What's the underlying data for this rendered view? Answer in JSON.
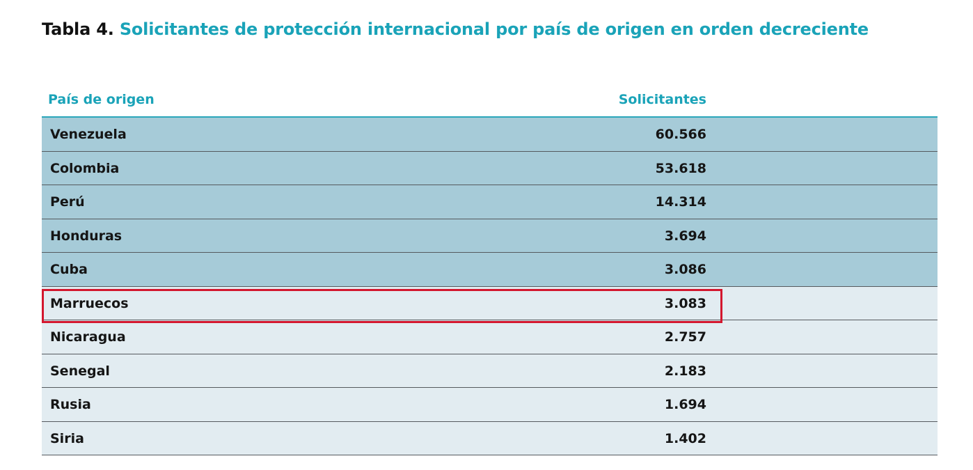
{
  "title": {
    "prefix": "Tabla 4.",
    "text": "Solicitantes de protección internacional por país de origen en orden decreciente"
  },
  "table": {
    "headers": {
      "country": "País de origen",
      "value": "Solicitantes"
    },
    "rows": [
      {
        "country": "Venezuela",
        "value": "60.566"
      },
      {
        "country": "Colombia",
        "value": "53.618"
      },
      {
        "country": "Perú",
        "value": "14.314"
      },
      {
        "country": "Honduras",
        "value": "3.694"
      },
      {
        "country": "Cuba",
        "value": "3.086"
      },
      {
        "country": "Marruecos",
        "value": "3.083"
      },
      {
        "country": "Nicaragua",
        "value": "2.757"
      },
      {
        "country": "Senegal",
        "value": "2.183"
      },
      {
        "country": "Rusia",
        "value": "1.694"
      },
      {
        "country": "Siria",
        "value": "1.402"
      }
    ],
    "highlighted_row": "Marruecos"
  },
  "colors": {
    "accent": "#1aa3b8",
    "top_rows_bg": "#a6cbd8",
    "other_rows_bg": "#e2ecf1",
    "highlight_border": "#d3172e"
  }
}
